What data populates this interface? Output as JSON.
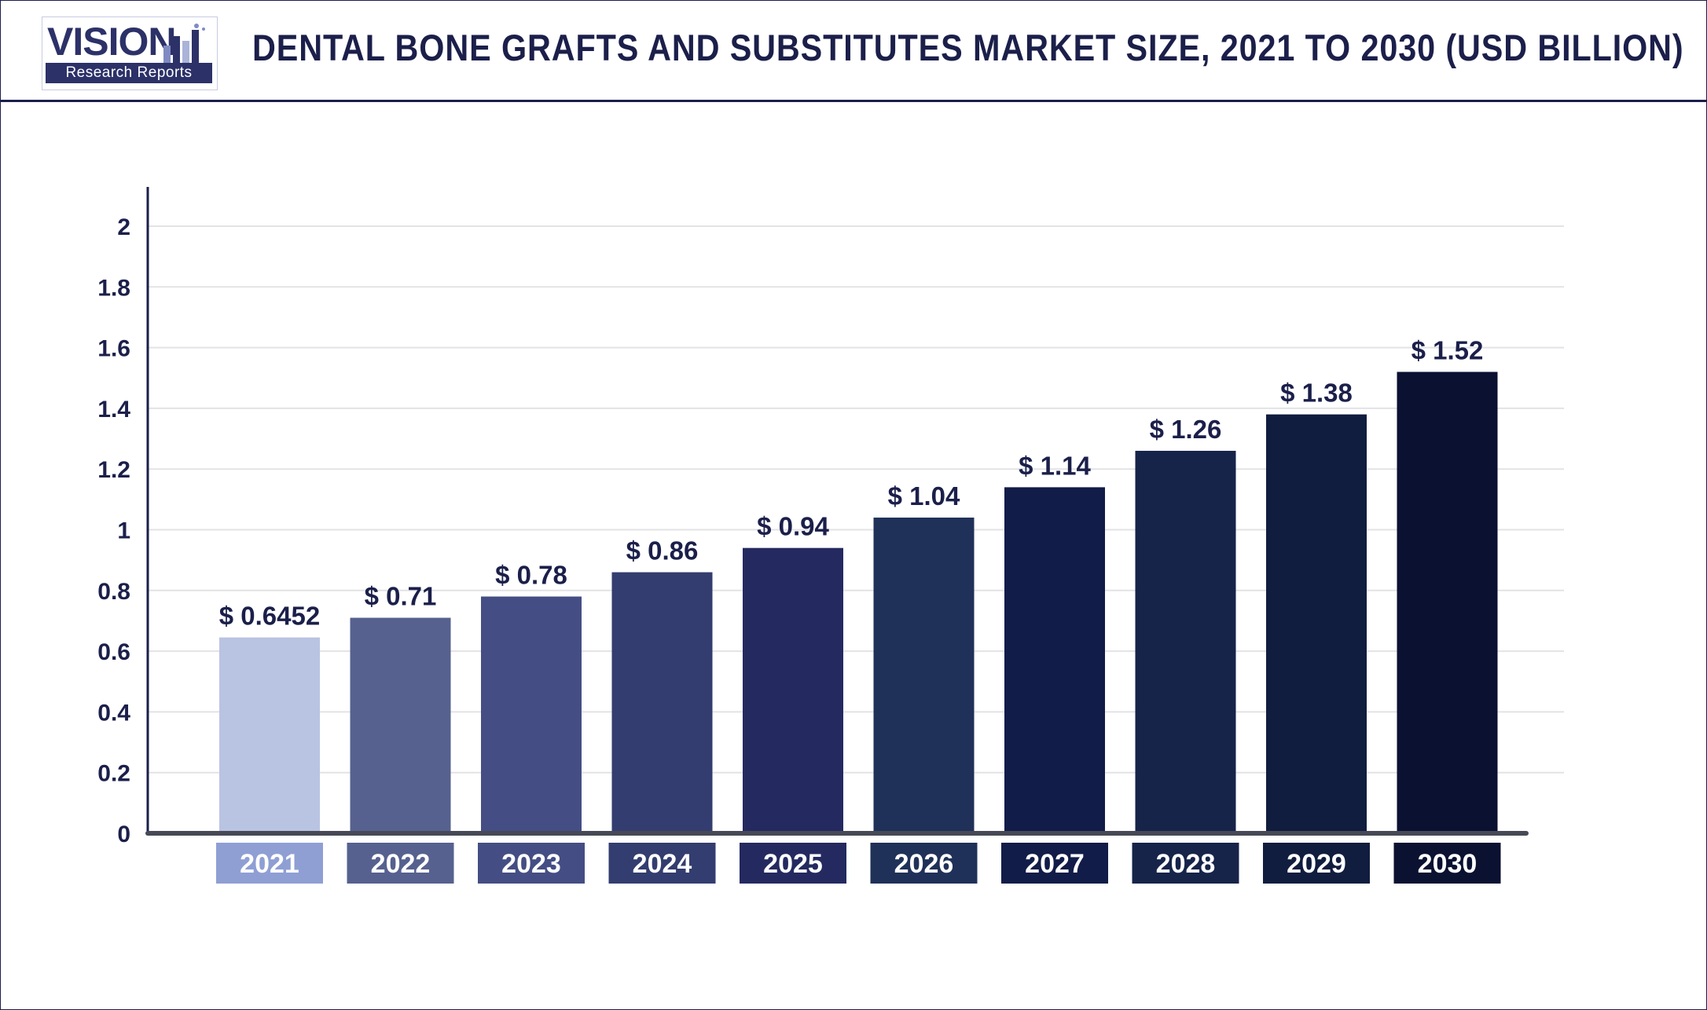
{
  "header": {
    "logo_word": "VISION",
    "logo_tagline": "Research Reports",
    "title": "DENTAL BONE GRAFTS AND SUBSTITUTES MARKET SIZE, 2021 TO 2030 (USD BILLION)"
  },
  "chart_data": {
    "type": "bar",
    "title": "DENTAL BONE GRAFTS AND SUBSTITUTES MARKET SIZE, 2021 TO 2030 (USD BILLION)",
    "xlabel": "",
    "ylabel": "",
    "ylim": [
      0,
      2
    ],
    "yticks": [
      0,
      0.2,
      0.4,
      0.6,
      0.8,
      1,
      1.2,
      1.4,
      1.6,
      1.8,
      2
    ],
    "ytick_labels": [
      "0",
      "0.2",
      "0.4",
      "0.6",
      "0.8",
      "1",
      "1.2",
      "1.4",
      "1.6",
      "1.8",
      "2"
    ],
    "grid": true,
    "legend": "none",
    "categories": [
      "2021",
      "2022",
      "2023",
      "2024",
      "2025",
      "2026",
      "2027",
      "2028",
      "2029",
      "2030"
    ],
    "values": [
      0.6452,
      0.71,
      0.78,
      0.86,
      0.94,
      1.04,
      1.14,
      1.26,
      1.38,
      1.52
    ],
    "data_labels": [
      "$ 0.6452",
      "$ 0.71",
      "$ 0.78",
      "$ 0.86",
      "$ 0.94",
      "$ 1.04",
      "$ 1.14",
      "$ 1.26",
      "$ 1.38",
      "$ 1.52"
    ],
    "bar_colors": [
      "#b9c3e2",
      "#56618f",
      "#444e84",
      "#333d6f",
      "#242a60",
      "#1f3158",
      "#111c48",
      "#16244a",
      "#111d3e",
      "#0a1131"
    ],
    "label_box_colors": [
      "#8f9fd4",
      "#56618f",
      "#444e84",
      "#333d6f",
      "#242a60",
      "#1f3158",
      "#111c48",
      "#16244a",
      "#111d3e",
      "#0a1131"
    ],
    "colors": {
      "text": "#1b1f4a",
      "grid": "#e3e3e6",
      "axis": "#474a56"
    }
  }
}
